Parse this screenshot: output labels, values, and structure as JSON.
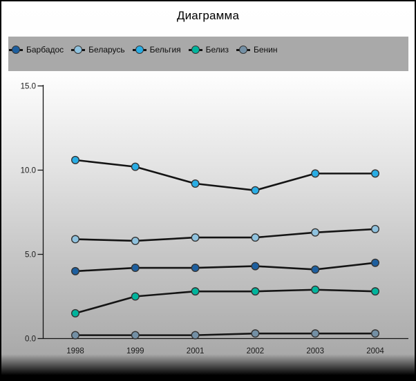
{
  "chart_data": {
    "type": "line",
    "title": "Диаграмма",
    "x": [
      "1998",
      "1999",
      "2001",
      "2002",
      "2003",
      "2004"
    ],
    "series": [
      {
        "name": "Барбадос",
        "color": "#1d5f9f",
        "values": [
          4.0,
          4.2,
          4.2,
          4.3,
          4.1,
          4.5
        ]
      },
      {
        "name": "Беларусь",
        "color": "#8fc2de",
        "values": [
          5.9,
          5.8,
          6.0,
          6.0,
          6.3,
          6.5
        ]
      },
      {
        "name": "Бельгия",
        "color": "#29ade4",
        "values": [
          10.6,
          10.2,
          9.2,
          8.8,
          9.8,
          9.8
        ]
      },
      {
        "name": "Белиз",
        "color": "#00b49c",
        "values": [
          1.5,
          2.5,
          2.8,
          2.8,
          2.9,
          2.8
        ]
      },
      {
        "name": "Бенин",
        "color": "#7490a5",
        "values": [
          0.2,
          0.2,
          0.2,
          0.3,
          0.3,
          0.3
        ]
      }
    ],
    "yticks": [
      0,
      5,
      10,
      15
    ],
    "ytick_labels": [
      "0.0",
      "5.0",
      "10.0",
      "15.0"
    ],
    "ylim": [
      0,
      15
    ],
    "grid": false,
    "legend_position": "top",
    "colors": {
      "line": "#141414",
      "axis": "#141414",
      "marker_outline": "#333333",
      "legend_background": "#a9a9a9",
      "tick_label": "#1a1a1a"
    }
  }
}
